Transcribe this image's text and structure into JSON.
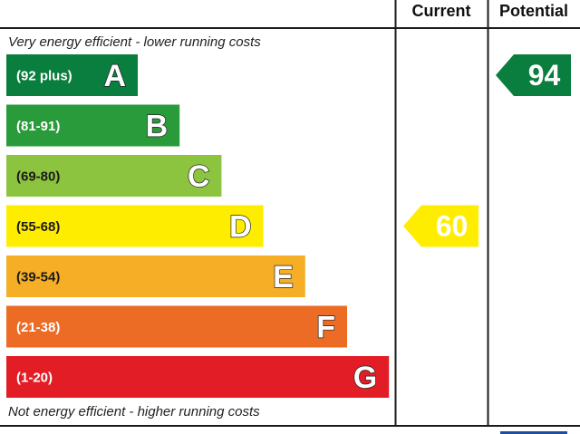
{
  "chart_data": {
    "type": "bar",
    "columns": {
      "current": "Current",
      "potential": "Potential"
    },
    "top_note": "Very energy efficient - lower running costs",
    "bottom_note": "Not energy efficient - higher running costs",
    "bands": [
      {
        "letter": "A",
        "range": "(92 plus)",
        "min": 92,
        "max": 100,
        "color": "#0a7e3e"
      },
      {
        "letter": "B",
        "range": "(81-91)",
        "min": 81,
        "max": 91,
        "color": "#2a9b3b"
      },
      {
        "letter": "C",
        "range": "(69-80)",
        "min": 69,
        "max": 80,
        "color": "#8cc43f"
      },
      {
        "letter": "D",
        "range": "(55-68)",
        "min": 55,
        "max": 68,
        "color": "#ffed00"
      },
      {
        "letter": "E",
        "range": "(39-54)",
        "min": 39,
        "max": 54,
        "color": "#f6ae26"
      },
      {
        "letter": "F",
        "range": "(21-38)",
        "min": 21,
        "max": 38,
        "color": "#ec6b25"
      },
      {
        "letter": "G",
        "range": "(1-20)",
        "min": 1,
        "max": 20,
        "color": "#e31d25"
      }
    ],
    "ratings": {
      "current": {
        "value": 60,
        "band": "D",
        "color": "#ffed00"
      },
      "potential": {
        "value": 94,
        "band": "A",
        "color": "#0a7e3e"
      }
    }
  }
}
